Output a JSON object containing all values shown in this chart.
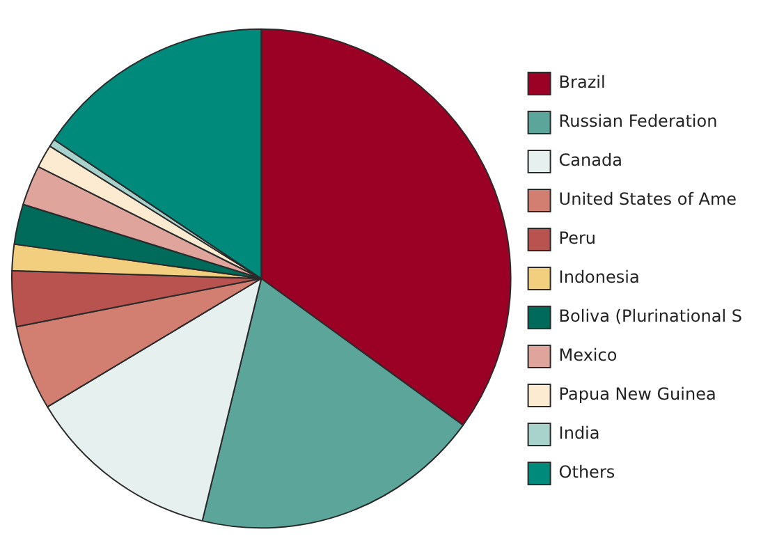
{
  "chart_data": {
    "type": "pie",
    "categories": [
      "Brazil",
      "Russian Federation",
      "Canada",
      "United States of Ame",
      "Peru",
      "Indonesia",
      "Boliva (Plurinational S",
      "Mexico",
      "Papua New Guinea",
      "India",
      "Others"
    ],
    "values": [
      35,
      18.8,
      12.6,
      5.5,
      3.6,
      1.7,
      2.6,
      2.6,
      1.5,
      0.5,
      15.6
    ],
    "colors": [
      "#9b0025",
      "#5ba59a",
      "#e6f0ef",
      "#d27f72",
      "#b9534f",
      "#f2cf7e",
      "#006b5b",
      "#dfa49c",
      "#fcebd0",
      "#a8d3cc",
      "#008a7c"
    ],
    "legend": "right"
  }
}
